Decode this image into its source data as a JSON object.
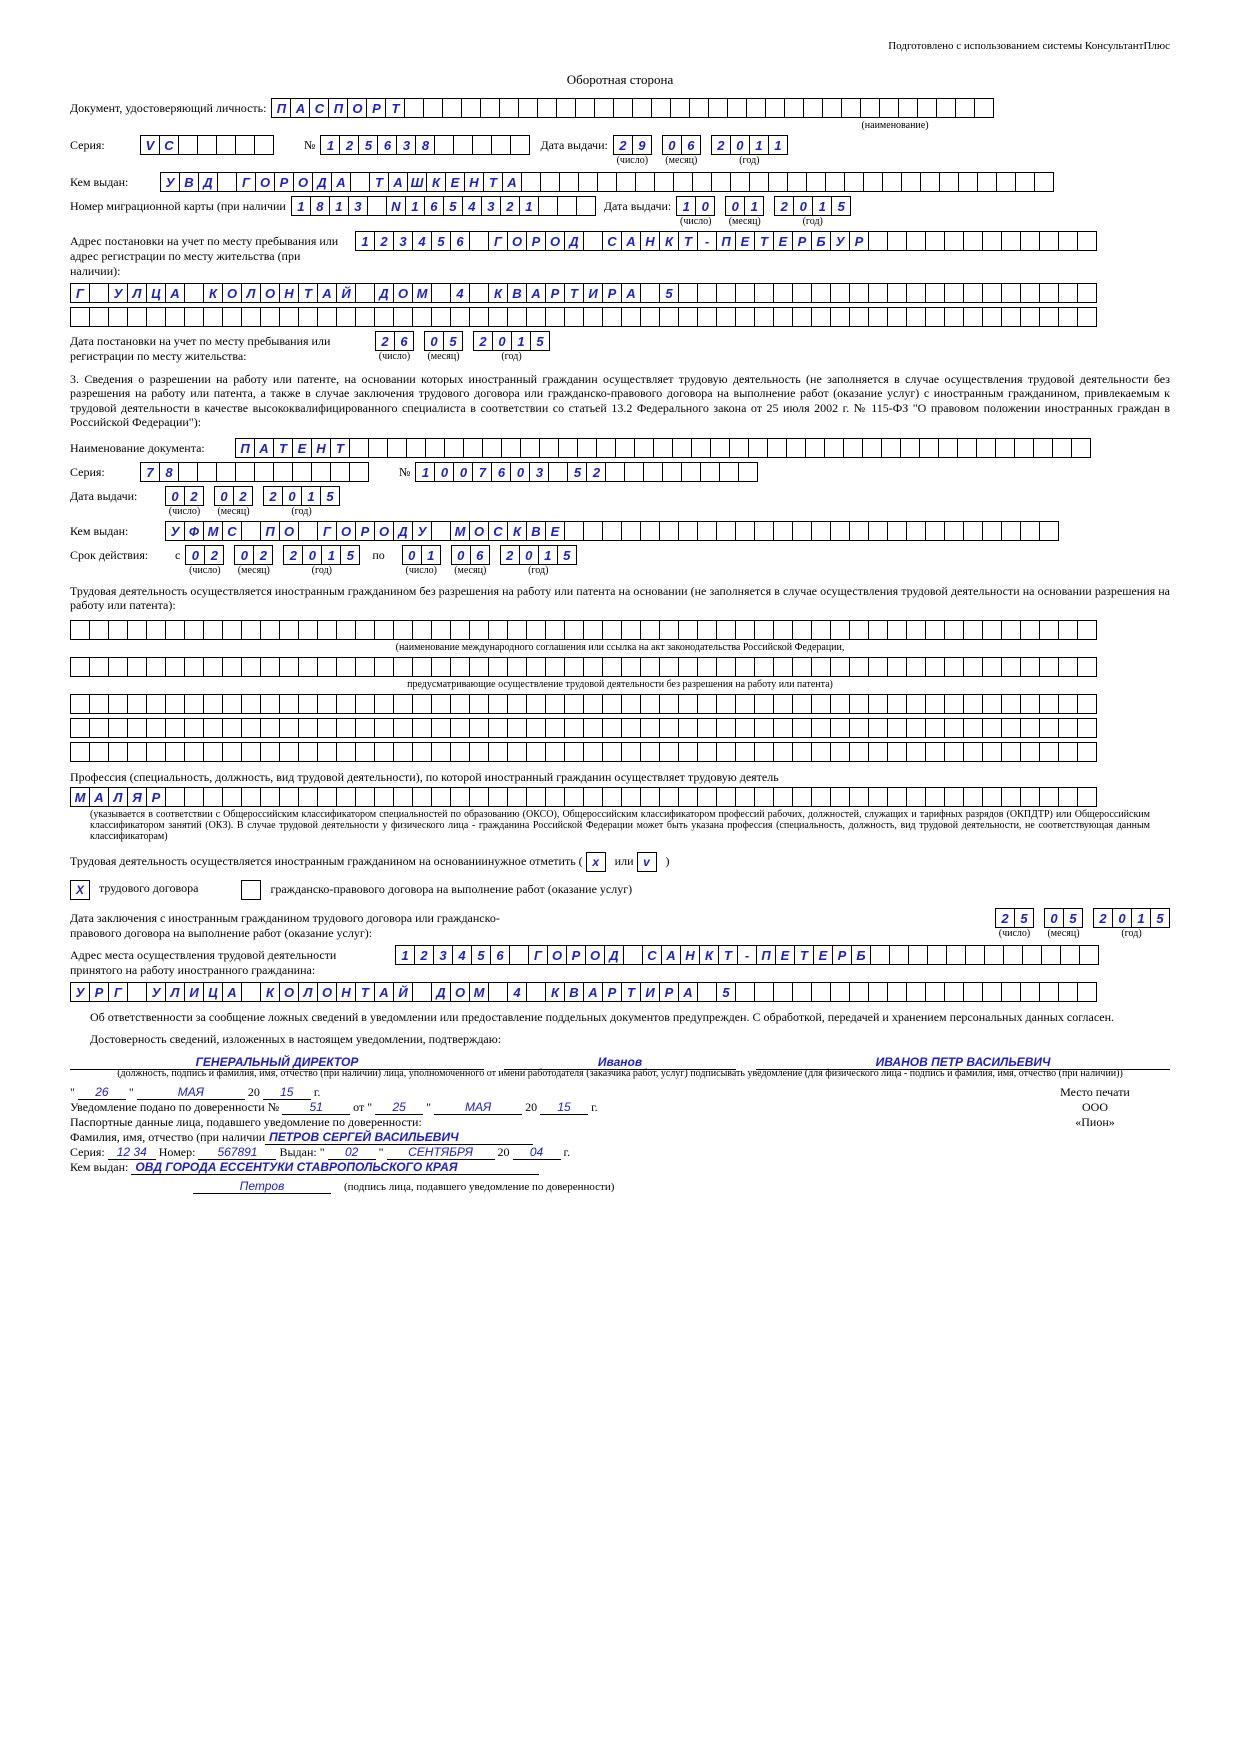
{
  "header": "Подготовлено с использованием системы КонсультантПлюс",
  "page_title": "Оборотная сторона",
  "doc_label": "Документ, удостоверяющий личность:",
  "doc_value": "ПАСПОРТ",
  "naimenovanie": "(наименование)",
  "seria_label": "Серия:",
  "seria_value": "VC",
  "num_symbol": "№",
  "num_value": "125638",
  "date_issue_label": "Дата выдачи:",
  "date_issue_day": "29",
  "date_issue_month": "06",
  "date_issue_year": "2011",
  "chislo": "(число)",
  "mesyac": "(месяц)",
  "god": "(год)",
  "kem_label": "Кем выдан:",
  "kem_value": "УВД ГОРОДА ТАШКЕНТА",
  "mig_label": "Номер миграционной карты (при наличии",
  "mig_value": "1813 N1654321",
  "mig_date_label": "Дата выдачи:",
  "mig_day": "10",
  "mig_month": "01",
  "mig_year": "2015",
  "addr_label": "Адрес постановки на учет по месту пребывания или адрес регистрации по месту жительства (при наличии):",
  "addr_line1": "123456 ГОРОД САНКТ-ПЕТЕРБУР",
  "addr_line2": "Г УЛЦА КОЛОНТАЙ ДОМ 4 КВАРТИРА 5",
  "reg_date_label": "Дата постановки на учет по месту пребывания или регистрации по месту жительства:",
  "reg_day": "26",
  "reg_month": "05",
  "reg_year": "2015",
  "section3": "3.  Сведения о разрешении на работу или патенте, на основании которых иностранный гражданин осуществляет трудовую деятельность (не заполняется в случае осуществления трудовой деятельности без разрешения на работу или патента, а также в случае заключения трудового договора или гражданско-правового договора на выполнение работ (оказание услуг) с иностранным гражданином, привлекаемым к трудовой деятельности в качестве высококвалифицированного специалиста в соответствии со статьей 13.2 Федерального закона от 25 июля 2002 г. № 115-ФЗ \"О правовом положении иностранных граждан в Российской Федерации\"):",
  "docname_label": "Наименование документа:",
  "docname_value": "ПАТЕНТ",
  "patent_seria": "78",
  "patent_num": "1007603 52",
  "patent_date_label": "Дата выдачи:",
  "patent_day": "02",
  "patent_month": "02",
  "patent_year": "2015",
  "patent_kem": "УФМС ПО ГОРОДУ МОСКВЕ",
  "srok_label": "Срок действия:",
  "s_label": "с",
  "po_label": "по",
  "srok_from_day": "02",
  "srok_from_month": "02",
  "srok_from_year": "2015",
  "srok_to_day": "01",
  "srok_to_month": "06",
  "srok_to_year": "2015",
  "trud_text": "Трудовая деятельность осуществляется иностранным гражданином без разрешения на работу или патента на основании (не заполняется в случае осуществления трудовой деятельности на основании разрешения на работу или патента):",
  "note1": "(наименование международного соглашения или ссылка на акт законодательства Российской Федерации,",
  "note2": "предусматривающие осуществление трудовой деятельности без разрешения на работу или патента)",
  "prof_label": "Профессия (специальность, должность, вид трудовой деятельности), по которой иностранный гражданин осуществляет трудовую деятель",
  "prof_value": "МАЛЯР",
  "prof_note": "(указывается в соответствии с Общероссийским классификатором специальностей по образованию (ОКСО), Общероссийским классификатором профессий рабочих, должностей, служащих и тарифных разрядов (ОКПДТР) или Общероссийским классификатором занятий (ОКЗ). В случае трудовой деятельности у физического лица - гражданина Российской Федерации может быть указана профессия (специальность, должность, вид трудовой деятельности, не соответствующая данным классификаторам)",
  "basis_label": "Трудовая деятельность осуществляется иностранным гражданином на основаниинужное отметить (",
  "or_label": "или",
  "check1_label": "трудового договора",
  "check2_label": "гражданско-правового договора на выполнение работ (оказание услуг)",
  "contract_date_label": "Дата заключения с иностранным гражданином трудового договора или гражданско-правового договора на выполнение работ (оказание услуг):",
  "contract_day": "25",
  "contract_month": "05",
  "contract_year": "2015",
  "work_addr_label": "Адрес места осуществления трудовой деятельности принятого на работу иностранного гражданина:",
  "work_addr1": "123456 ГОРОД САНКТ-ПЕТЕРБ",
  "work_addr2": "УРГ УЛИЦА КОЛОНТАЙ ДОМ 4 КВАРТИРА 5",
  "warn1": "Об ответственности за сообщение ложных сведений в уведомлении или предоставление поддельных документов предупрежден. С обработкой, передачей и хранением персональных данных согласен.",
  "warn2": "Достоверность сведений, изложенных в настоящем уведомлении, подтверждаю:",
  "sig_position": "ГЕНЕРАЛЬНЫЙ ДИРЕКТОР",
  "sig_sign": "Иванов",
  "sig_name": "ИВАНОВ ПЕТР ВАСИЛЬЕВИЧ",
  "sig_note": "(должность, подпись и фамилия, имя, отчество (при наличии) лица, уполномоченного от имени работодателя (заказчика работ, услуг) подписывать уведомление (для физического лица - подпись и фамилия, имя, отчество (при наличии))",
  "bottom_day": "26",
  "bottom_month": "МАЯ",
  "bottom_year": "15",
  "mesto_pechati": "Место печати",
  "dover_label": "Уведомление подано по доверенности №",
  "dover_num": "51",
  "ot_label": "от",
  "dover_day": "25",
  "dover_month": "МАЯ",
  "dover_year": "15",
  "ooo": "ООО",
  "pion": "«Пион»",
  "pasp_label": "Паспортные данные лица, подавшего уведомление по доверенности:",
  "fio_label": "Фамилия, имя, отчество (при наличии",
  "fio_value": "ПЕТРОВ СЕРГЕЙ ВАСИЛЬЕВИЧ",
  "p_seria_label": "Серия:",
  "p_seria": "12 34",
  "p_num_label": "Номер:",
  "p_num": "567891",
  "p_vydan_label": "Выдан:",
  "p_day": "02",
  "p_month": "СЕНТЯБРЯ",
  "p_year": "04",
  "p_kem_label": "Кем выдан:",
  "p_kem": "ОВД ГОРОДА ЕССЕНТУКИ СТАВРОПОЛЬСКОГО КРАЯ",
  "petrov_sign": "Петров",
  "sign_note": "(подпись лица, подавшего уведомление по доверенности)",
  "g_suffix": "г.",
  "colors": {
    "blue": "#2020c0",
    "black": "#000000"
  }
}
